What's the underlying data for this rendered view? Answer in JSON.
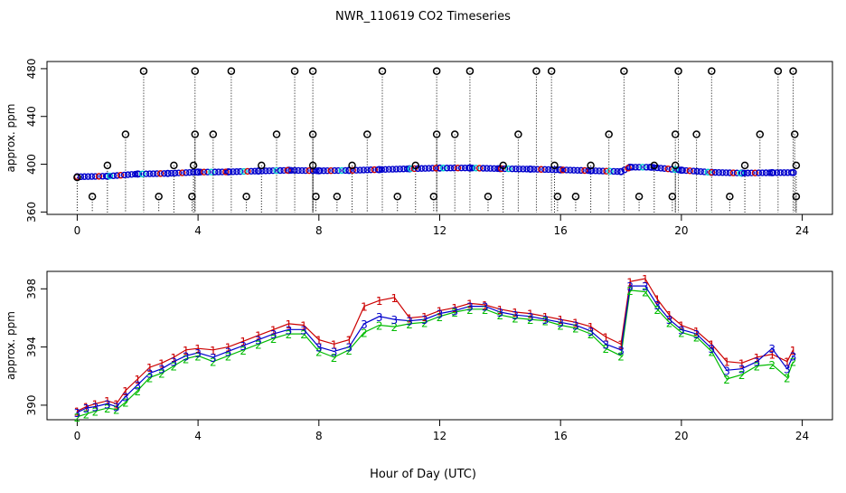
{
  "title": "NWR_110619  CO2 Timeseries",
  "xlabel": "Hour of Day (UTC)",
  "colors": {
    "axis": "#000000",
    "series1": "#cc0000",
    "series2": "#00bb00",
    "series3": "#0000cc",
    "cyan": "#00cccc",
    "flag": "#000000"
  },
  "chart_data": [
    {
      "type": "scatter",
      "id": "top",
      "ylabel": "approx. ppm",
      "xlim": [
        -1.0,
        25.0
      ],
      "ylim": [
        358,
        486
      ],
      "xticks": [
        0,
        4,
        8,
        12,
        16,
        20,
        24
      ],
      "xtick_labels": [
        "0",
        "4",
        "8",
        "12",
        "16",
        "20",
        "24"
      ],
      "yticks": [
        360,
        400,
        440,
        480
      ],
      "ytick_labels": [
        "360",
        "400",
        "440",
        "480"
      ],
      "baseline_values": [
        [
          0.0,
          389.5
        ],
        [
          1.0,
          390.0
        ],
        [
          2.0,
          391.8
        ],
        [
          3.0,
          392.3
        ],
        [
          4.0,
          393.4
        ],
        [
          5.0,
          393.6
        ],
        [
          6.0,
          394.3
        ],
        [
          7.0,
          394.9
        ],
        [
          8.0,
          394.5
        ],
        [
          9.0,
          394.8
        ],
        [
          10.0,
          395.5
        ],
        [
          11.0,
          396.2
        ],
        [
          12.0,
          396.8
        ],
        [
          13.0,
          396.9
        ],
        [
          14.0,
          396.3
        ],
        [
          15.0,
          395.9
        ],
        [
          16.0,
          395.3
        ],
        [
          17.0,
          394.6
        ],
        [
          18.0,
          393.8
        ],
        [
          18.3,
          397.5
        ],
        [
          19.0,
          397.5
        ],
        [
          20.0,
          395.0
        ],
        [
          21.0,
          393.2
        ],
        [
          22.0,
          392.6
        ],
        [
          23.0,
          392.9
        ],
        [
          23.7,
          393.0
        ]
      ],
      "flagged_points": [
        [
          0.0,
          389
        ],
        [
          0.5,
          373
        ],
        [
          1.0,
          399
        ],
        [
          1.6,
          425
        ],
        [
          2.2,
          478
        ],
        [
          2.7,
          373
        ],
        [
          3.2,
          399
        ],
        [
          3.8,
          373
        ],
        [
          3.85,
          399
        ],
        [
          3.9,
          425
        ],
        [
          3.9,
          478
        ],
        [
          4.5,
          425
        ],
        [
          5.1,
          478
        ],
        [
          5.6,
          373
        ],
        [
          6.1,
          399
        ],
        [
          6.6,
          425
        ],
        [
          7.2,
          478
        ],
        [
          7.8,
          478
        ],
        [
          7.8,
          425
        ],
        [
          7.8,
          399
        ],
        [
          7.9,
          373
        ],
        [
          8.6,
          373
        ],
        [
          9.1,
          399
        ],
        [
          9.6,
          425
        ],
        [
          10.1,
          478
        ],
        [
          10.6,
          373
        ],
        [
          11.2,
          399
        ],
        [
          11.8,
          373
        ],
        [
          11.9,
          425
        ],
        [
          11.9,
          478
        ],
        [
          12.5,
          425
        ],
        [
          13.0,
          478
        ],
        [
          13.6,
          373
        ],
        [
          14.1,
          399
        ],
        [
          14.6,
          425
        ],
        [
          15.2,
          478
        ],
        [
          15.7,
          478
        ],
        [
          15.8,
          399
        ],
        [
          15.9,
          373
        ],
        [
          16.5,
          373
        ],
        [
          17.0,
          399
        ],
        [
          17.6,
          425
        ],
        [
          18.1,
          478
        ],
        [
          18.6,
          373
        ],
        [
          19.1,
          399
        ],
        [
          19.7,
          373
        ],
        [
          19.8,
          399
        ],
        [
          19.8,
          425
        ],
        [
          19.9,
          478
        ],
        [
          20.5,
          425
        ],
        [
          21.0,
          478
        ],
        [
          21.6,
          373
        ],
        [
          22.1,
          399
        ],
        [
          22.6,
          425
        ],
        [
          23.2,
          478
        ],
        [
          23.7,
          478
        ],
        [
          23.75,
          425
        ],
        [
          23.8,
          399
        ],
        [
          23.8,
          373
        ]
      ]
    },
    {
      "type": "scatter",
      "id": "bottom",
      "ylabel": "approx. ppm",
      "xlim": [
        -1.0,
        25.0
      ],
      "ylim": [
        389.0,
        399.2
      ],
      "xticks": [
        0,
        4,
        8,
        12,
        16,
        20,
        24
      ],
      "xtick_labels": [
        "0",
        "4",
        "8",
        "12",
        "16",
        "20",
        "24"
      ],
      "yticks": [
        390,
        394,
        398
      ],
      "ytick_labels": [
        "390",
        "394",
        "398"
      ],
      "series": [
        {
          "name": "1",
          "marker": "1",
          "values": [
            [
              0.0,
              389.6
            ],
            [
              0.3,
              389.9
            ],
            [
              0.6,
              390.1
            ],
            [
              1.0,
              390.3
            ],
            [
              1.3,
              390.1
            ],
            [
              1.6,
              391.0
            ],
            [
              2.0,
              391.8
            ],
            [
              2.4,
              392.6
            ],
            [
              2.8,
              392.9
            ],
            [
              3.2,
              393.3
            ],
            [
              3.6,
              393.8
            ],
            [
              4.0,
              393.9
            ],
            [
              4.5,
              393.8
            ],
            [
              5.0,
              394.0
            ],
            [
              5.5,
              394.4
            ],
            [
              6.0,
              394.8
            ],
            [
              6.5,
              395.2
            ],
            [
              7.0,
              395.6
            ],
            [
              7.5,
              395.5
            ],
            [
              8.0,
              394.5
            ],
            [
              8.5,
              394.2
            ],
            [
              9.0,
              394.5
            ],
            [
              9.5,
              396.8
            ],
            [
              10.0,
              397.2
            ],
            [
              10.5,
              397.4
            ],
            [
              11.0,
              396.0
            ],
            [
              11.5,
              396.1
            ],
            [
              12.0,
              396.5
            ],
            [
              12.5,
              396.7
            ],
            [
              13.0,
              397.0
            ],
            [
              13.5,
              396.9
            ],
            [
              14.0,
              396.6
            ],
            [
              14.5,
              396.4
            ],
            [
              15.0,
              396.3
            ],
            [
              15.5,
              396.1
            ],
            [
              16.0,
              395.9
            ],
            [
              16.5,
              395.7
            ],
            [
              17.0,
              395.4
            ],
            [
              17.5,
              394.7
            ],
            [
              18.0,
              394.2
            ],
            [
              18.3,
              398.5
            ],
            [
              18.8,
              398.7
            ],
            [
              19.2,
              397.3
            ],
            [
              19.6,
              396.2
            ],
            [
              20.0,
              395.5
            ],
            [
              20.5,
              395.1
            ],
            [
              21.0,
              394.2
            ],
            [
              21.5,
              393.0
            ],
            [
              22.0,
              392.9
            ],
            [
              22.5,
              393.3
            ],
            [
              23.0,
              393.5
            ],
            [
              23.5,
              393.0
            ],
            [
              23.7,
              393.8
            ]
          ]
        },
        {
          "name": "2",
          "marker": "2",
          "values": [
            [
              0.0,
              389.2
            ],
            [
              0.3,
              389.4
            ],
            [
              0.6,
              389.6
            ],
            [
              1.0,
              389.8
            ],
            [
              1.3,
              389.7
            ],
            [
              1.6,
              390.2
            ],
            [
              2.0,
              391.0
            ],
            [
              2.4,
              391.9
            ],
            [
              2.8,
              392.2
            ],
            [
              3.2,
              392.7
            ],
            [
              3.6,
              393.2
            ],
            [
              4.0,
              393.4
            ],
            [
              4.5,
              393.0
            ],
            [
              5.0,
              393.4
            ],
            [
              5.5,
              393.8
            ],
            [
              6.0,
              394.2
            ],
            [
              6.5,
              394.6
            ],
            [
              7.0,
              394.9
            ],
            [
              7.5,
              394.9
            ],
            [
              8.0,
              393.7
            ],
            [
              8.5,
              393.3
            ],
            [
              9.0,
              393.8
            ],
            [
              9.5,
              395.0
            ],
            [
              10.0,
              395.5
            ],
            [
              10.5,
              395.4
            ],
            [
              11.0,
              395.6
            ],
            [
              11.5,
              395.7
            ],
            [
              12.0,
              396.1
            ],
            [
              12.5,
              396.4
            ],
            [
              13.0,
              396.6
            ],
            [
              13.5,
              396.6
            ],
            [
              14.0,
              396.2
            ],
            [
              14.5,
              396.0
            ],
            [
              15.0,
              395.9
            ],
            [
              15.5,
              395.8
            ],
            [
              16.0,
              395.5
            ],
            [
              16.5,
              395.3
            ],
            [
              17.0,
              394.9
            ],
            [
              17.5,
              393.9
            ],
            [
              18.0,
              393.4
            ],
            [
              18.3,
              397.9
            ],
            [
              18.8,
              397.8
            ],
            [
              19.2,
              396.6
            ],
            [
              19.6,
              395.7
            ],
            [
              20.0,
              395.0
            ],
            [
              20.5,
              394.7
            ],
            [
              21.0,
              393.7
            ],
            [
              21.5,
              391.8
            ],
            [
              22.0,
              392.1
            ],
            [
              22.5,
              392.7
            ],
            [
              23.0,
              392.8
            ],
            [
              23.5,
              391.9
            ],
            [
              23.7,
              393.0
            ]
          ]
        },
        {
          "name": "3",
          "marker": "3",
          "values": [
            [
              0.0,
              389.5
            ],
            [
              0.3,
              389.8
            ],
            [
              0.6,
              389.9
            ],
            [
              1.0,
              390.1
            ],
            [
              1.3,
              389.9
            ],
            [
              1.6,
              390.6
            ],
            [
              2.0,
              391.4
            ],
            [
              2.4,
              392.2
            ],
            [
              2.8,
              392.5
            ],
            [
              3.2,
              393.0
            ],
            [
              3.6,
              393.4
            ],
            [
              4.0,
              393.6
            ],
            [
              4.5,
              393.3
            ],
            [
              5.0,
              393.7
            ],
            [
              5.5,
              394.1
            ],
            [
              6.0,
              394.5
            ],
            [
              6.5,
              394.9
            ],
            [
              7.0,
              395.2
            ],
            [
              7.5,
              395.2
            ],
            [
              8.0,
              394.0
            ],
            [
              8.5,
              393.7
            ],
            [
              9.0,
              394.0
            ],
            [
              9.5,
              395.6
            ],
            [
              10.0,
              396.1
            ],
            [
              10.5,
              395.9
            ],
            [
              11.0,
              395.8
            ],
            [
              11.5,
              395.9
            ],
            [
              12.0,
              396.3
            ],
            [
              12.5,
              396.5
            ],
            [
              13.0,
              396.8
            ],
            [
              13.5,
              396.8
            ],
            [
              14.0,
              396.4
            ],
            [
              14.5,
              396.2
            ],
            [
              15.0,
              396.1
            ],
            [
              15.5,
              395.9
            ],
            [
              16.0,
              395.7
            ],
            [
              16.5,
              395.5
            ],
            [
              17.0,
              395.1
            ],
            [
              17.5,
              394.2
            ],
            [
              18.0,
              393.8
            ],
            [
              18.3,
              398.2
            ],
            [
              18.8,
              398.2
            ],
            [
              19.2,
              396.9
            ],
            [
              19.6,
              395.9
            ],
            [
              20.0,
              395.2
            ],
            [
              20.5,
              394.9
            ],
            [
              21.0,
              393.9
            ],
            [
              21.5,
              392.4
            ],
            [
              22.0,
              392.5
            ],
            [
              22.5,
              393.0
            ],
            [
              23.0,
              393.9
            ],
            [
              23.5,
              392.5
            ],
            [
              23.7,
              393.4
            ]
          ]
        }
      ]
    }
  ]
}
